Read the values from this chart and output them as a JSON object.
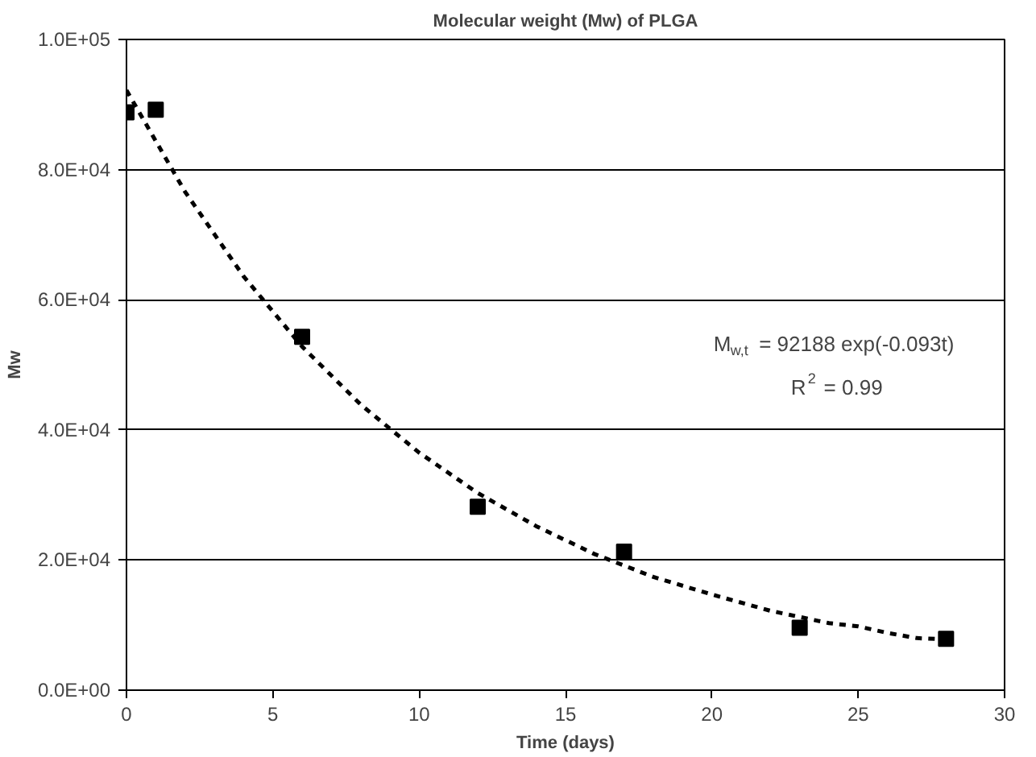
{
  "chart_data": {
    "type": "scatter",
    "title": "Molecular weight (Mw) of PLGA",
    "xlabel": "Time (days)",
    "ylabel": "Mw",
    "xlim": [
      0,
      30
    ],
    "xticks": [
      0,
      5,
      10,
      15,
      20,
      25,
      30
    ],
    "ylim": [
      0,
      100000
    ],
    "yticks": [
      {
        "value": 0,
        "label": "0.0E+00"
      },
      {
        "value": 20000,
        "label": "2.0E+04"
      },
      {
        "value": 40000,
        "label": "4.0E+04"
      },
      {
        "value": 60000,
        "label": "6.0E+04"
      },
      {
        "value": 80000,
        "label": "8.0E+04"
      },
      {
        "value": 100000,
        "label": "1.0E+05"
      }
    ],
    "grid": "y",
    "series": [
      {
        "color": "#000000",
        "marker": "square",
        "x": [
          0,
          1,
          6,
          12,
          17,
          23,
          28
        ],
        "values": [
          88800,
          89200,
          54300,
          28200,
          21300,
          9600,
          7900
        ]
      },
      {
        "type": "line",
        "color": "#000000",
        "line_style": "dashed",
        "marker": "none",
        "x": [
          0,
          2,
          4,
          6,
          8,
          10,
          12,
          14,
          16,
          18,
          20,
          22,
          24,
          25,
          26,
          27,
          28
        ],
        "values": [
          92200,
          76600,
          63600,
          52800,
          43900,
          36500,
          30300,
          25200,
          20900,
          17400,
          14700,
          12200,
          10300,
          9800,
          8800,
          8000,
          7800
        ]
      }
    ],
    "annotations": [
      "M$_{w,t}$ = 92188 exp(-0.093t)",
      "R$^{2}$ = 0.99"
    ]
  }
}
